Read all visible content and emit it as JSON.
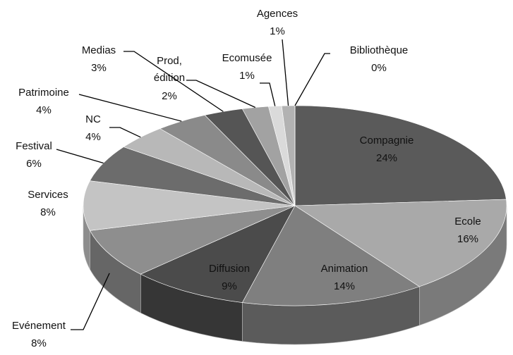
{
  "chart_data": {
    "type": "pie3d",
    "categories": [
      "Compagnie",
      "Ecole",
      "Animation",
      "Diffusion",
      "Evénement",
      "Services",
      "Festival",
      "NC",
      "Patrimoine",
      "Medias",
      "Prod, édition",
      "Ecomusée",
      "Agences",
      "Bibliothèque"
    ],
    "values": [
      24,
      16,
      14,
      9,
      8,
      8,
      6,
      4,
      4,
      3,
      2,
      1,
      1,
      0
    ],
    "value_labels": [
      "24%",
      "16%",
      "14%",
      "9%",
      "8%",
      "8%",
      "6%",
      "4%",
      "4%",
      "3%",
      "2%",
      "1%",
      "1%",
      "0%"
    ],
    "colors": [
      "#5a5a5a",
      "#a9a9a9",
      "#7f7f7f",
      "#4b4b4b",
      "#8e8e8e",
      "#c4c4c4",
      "#6c6c6c",
      "#b8b8b8",
      "#8a8a8a",
      "#555555",
      "#a2a2a2",
      "#dadada",
      "#b2b2b2",
      "#888888"
    ]
  }
}
